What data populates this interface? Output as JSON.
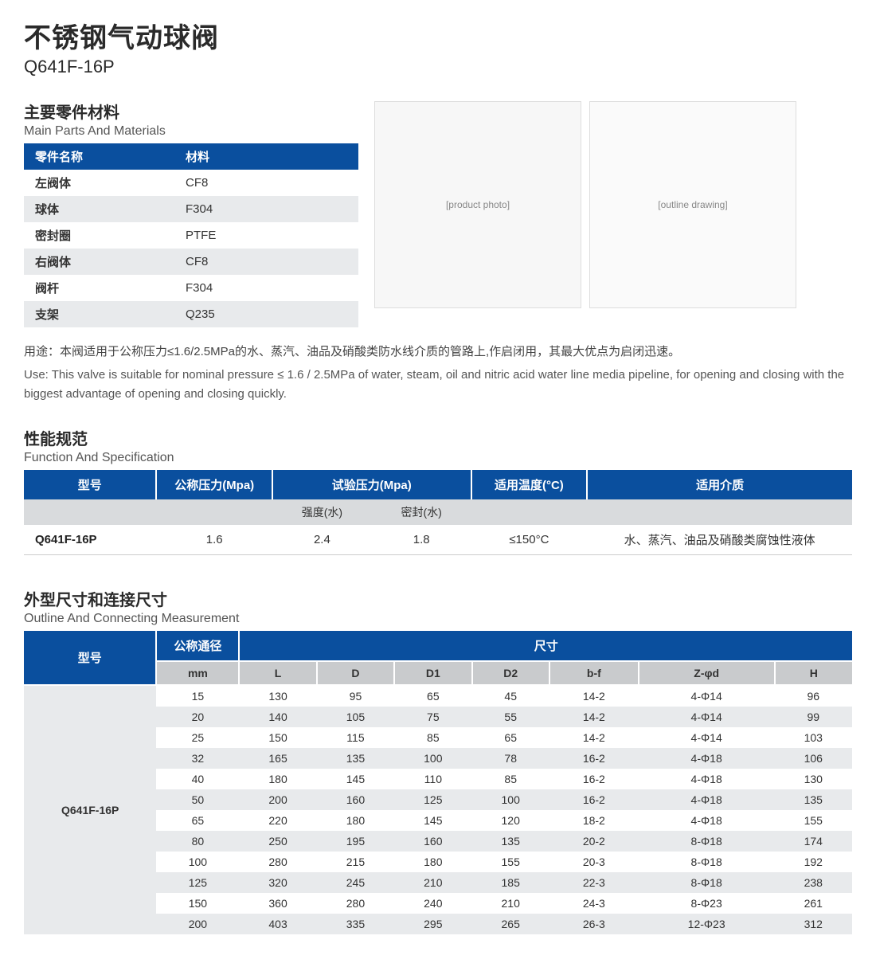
{
  "colors": {
    "header_bg": "#0a4f9e",
    "header_fg": "#ffffff",
    "stripe_a": "#ffffff",
    "stripe_b": "#e8eaec",
    "subhead_bg": "#c9cbcd",
    "subhead_bg2": "#d9dbdd",
    "text": "#333333",
    "accent": "#0a4f9e"
  },
  "title": {
    "cn": "不锈钢气动球阀",
    "en": "Q641F-16P"
  },
  "materials": {
    "heading_cn": "主要零件材料",
    "heading_en": "Main Parts And Materials",
    "columns": [
      "零件名称",
      "材料"
    ],
    "rows": [
      [
        "左阀体",
        "CF8"
      ],
      [
        "球体",
        "F304"
      ],
      [
        "密封圈",
        "PTFE"
      ],
      [
        "右阀体",
        "CF8"
      ],
      [
        "阀杆",
        "F304"
      ],
      [
        "支架",
        "Q235"
      ]
    ]
  },
  "images": {
    "product_alt": "[product photo]",
    "diagram_alt": "[outline drawing]"
  },
  "usage": {
    "cn": "用途：本阀适用于公称压力≤1.6/2.5MPa的水、蒸汽、油品及硝酸类防水线介质的管路上,作启闭用，其最大优点为启闭迅速。",
    "en": "Use: This valve is suitable for nominal pressure ≤ 1.6 / 2.5MPa of water, steam, oil and nitric acid water line media pipeline, for opening and closing with the biggest advantage of opening and closing quickly."
  },
  "spec": {
    "heading_cn": "性能规范",
    "heading_en": "Function And Specification",
    "headers": [
      "型号",
      "公称压力(Mpa)",
      "试验压力(Mpa)",
      "适用温度(°C)",
      "适用介质"
    ],
    "sub": [
      "",
      "",
      "强度(水)",
      "密封(水)",
      "",
      ""
    ],
    "row": [
      "Q641F-16P",
      "1.6",
      "2.4",
      "1.8",
      "≤150°C",
      "水、蒸汽、油品及硝酸类腐蚀性液体"
    ]
  },
  "dims": {
    "heading_cn": "外型尺寸和连接尺寸",
    "heading_en": "Outline And Connecting Measurement",
    "top_headers": {
      "model": "型号",
      "nominal": "公称通径",
      "size": "尺寸"
    },
    "sub_headers": [
      "mm",
      "L",
      "D",
      "D1",
      "D2",
      "b-f",
      "Z-φd",
      "H"
    ],
    "model": "Q641F-16P",
    "rows": [
      [
        "15",
        "130",
        "95",
        "65",
        "45",
        "14-2",
        "4-Φ14",
        "96"
      ],
      [
        "20",
        "140",
        "105",
        "75",
        "55",
        "14-2",
        "4-Φ14",
        "99"
      ],
      [
        "25",
        "150",
        "115",
        "85",
        "65",
        "14-2",
        "4-Φ14",
        "103"
      ],
      [
        "32",
        "165",
        "135",
        "100",
        "78",
        "16-2",
        "4-Φ18",
        "106"
      ],
      [
        "40",
        "180",
        "145",
        "110",
        "85",
        "16-2",
        "4-Φ18",
        "130"
      ],
      [
        "50",
        "200",
        "160",
        "125",
        "100",
        "16-2",
        "4-Φ18",
        "135"
      ],
      [
        "65",
        "220",
        "180",
        "145",
        "120",
        "18-2",
        "4-Φ18",
        "155"
      ],
      [
        "80",
        "250",
        "195",
        "160",
        "135",
        "20-2",
        "8-Φ18",
        "174"
      ],
      [
        "100",
        "280",
        "215",
        "180",
        "155",
        "20-3",
        "8-Φ18",
        "192"
      ],
      [
        "125",
        "320",
        "245",
        "210",
        "185",
        "22-3",
        "8-Φ18",
        "238"
      ],
      [
        "150",
        "360",
        "280",
        "240",
        "210",
        "24-3",
        "8-Φ23",
        "261"
      ],
      [
        "200",
        "403",
        "335",
        "295",
        "265",
        "26-3",
        "12-Φ23",
        "312"
      ]
    ]
  }
}
